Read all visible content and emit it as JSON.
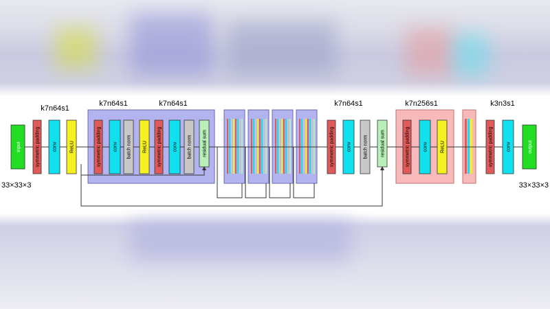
{
  "colors": {
    "input": "#22dd22",
    "output": "#22dd22",
    "padding": "#e05a5a",
    "conv": "#11e0ee",
    "relu": "#f5f020",
    "bnorm": "#c8c8c8",
    "residual": "#b8f0b8",
    "block_blue": "#b3b3f0",
    "block_pink": "#f7b9b9"
  },
  "diagram": {
    "input_label": "input",
    "output_label": "output",
    "input_shape": "33×33×3",
    "output_shape": "33×33×3",
    "layer_labels": {
      "padding": "symmetric padding",
      "conv": "conv",
      "relu": "ReLU",
      "bnorm": "batch norm",
      "residual": "residual sum"
    },
    "group_labels": {
      "g1": "k7n64s1",
      "g2a": "k7n64s1",
      "g2b": "k7n64s1",
      "g3": "k7n64s1",
      "g4": "k7n256s1",
      "g5": "k3n3s1"
    }
  }
}
